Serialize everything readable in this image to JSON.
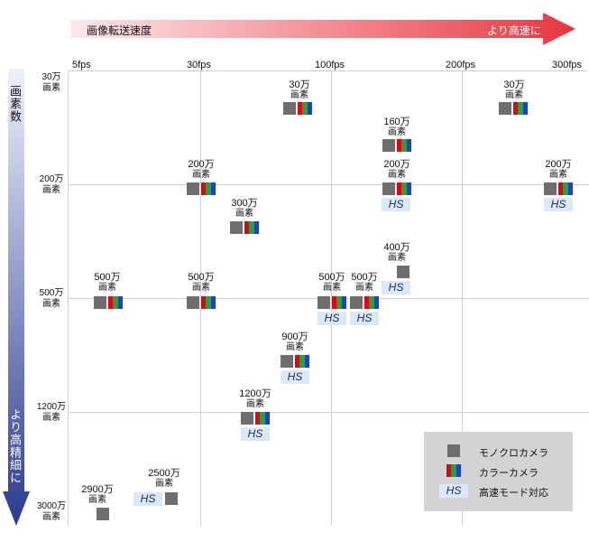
{
  "axes": {
    "speed_label": "画像転送速度",
    "speed_direction": "より高速に",
    "resolution_label": "画素数",
    "resolution_direction": "より高精細に",
    "fps": [
      "5fps",
      "30fps",
      "100fps",
      "200fps",
      "300fps"
    ],
    "pixels": [
      {
        "top": "30万",
        "bottom": "画素"
      },
      {
        "top": "200万",
        "bottom": "画素"
      },
      {
        "top": "500万",
        "bottom": "画素"
      },
      {
        "top": "1200万",
        "bottom": "画素"
      },
      {
        "top": "3000万",
        "bottom": "画素"
      }
    ]
  },
  "items": [
    {
      "mp": "30万",
      "unit": "画素",
      "types": [
        "mono",
        "color"
      ],
      "hs": false
    },
    {
      "mp": "30万",
      "unit": "画素",
      "types": [
        "mono",
        "color"
      ],
      "hs": false
    },
    {
      "mp": "160万",
      "unit": "画素",
      "types": [
        "mono",
        "color"
      ],
      "hs": false
    },
    {
      "mp": "200万",
      "unit": "画素",
      "types": [
        "mono",
        "color"
      ],
      "hs": false
    },
    {
      "mp": "200万",
      "unit": "画素",
      "types": [
        "mono",
        "color"
      ],
      "hs": true
    },
    {
      "mp": "200万",
      "unit": "画素",
      "types": [
        "mono",
        "color"
      ],
      "hs": true
    },
    {
      "mp": "300万",
      "unit": "画素",
      "types": [
        "mono",
        "color"
      ],
      "hs": false
    },
    {
      "mp": "400万",
      "unit": "画素",
      "types": [
        "mono"
      ],
      "hs": true
    },
    {
      "mp": "500万",
      "unit": "画素",
      "types": [
        "mono",
        "color"
      ],
      "hs": false
    },
    {
      "mp": "500万",
      "unit": "画素",
      "types": [
        "mono",
        "color"
      ],
      "hs": false
    },
    {
      "mp": "500万",
      "unit": "画素",
      "types": [
        "mono",
        "color"
      ],
      "hs": true
    },
    {
      "mp": "500万",
      "unit": "画素",
      "types": [
        "mono"
      ],
      "hs": true
    },
    {
      "mp": "900万",
      "unit": "画素",
      "types": [
        "mono",
        "color"
      ],
      "hs": true
    },
    {
      "mp": "1200万",
      "unit": "画素",
      "types": [
        "mono",
        "color"
      ],
      "hs": true
    },
    {
      "mp": "2900万",
      "unit": "画素",
      "types": [
        "mono"
      ],
      "hs": false
    },
    {
      "mp": "2500万",
      "unit": "画素",
      "types": [
        "mono"
      ],
      "hs": true
    }
  ],
  "hs_text": "HS",
  "legend": {
    "mono": "モノクロカメラ",
    "color": "カラーカメラ",
    "hs_badge": "HS",
    "hs": "高速モード対応"
  },
  "colors": {
    "arrow_start": "#fde8ea",
    "arrow_end": "#e8363f",
    "res_arrow_start": "#eef0fa",
    "res_arrow_end": "#2b3a8f",
    "mono": "#6e6e6e",
    "red": "#e60012",
    "green": "#2aa23a",
    "blue": "#1e3fd0",
    "hs_bg": "#dbe8f8",
    "legend_bg": "#d3d3d3"
  }
}
